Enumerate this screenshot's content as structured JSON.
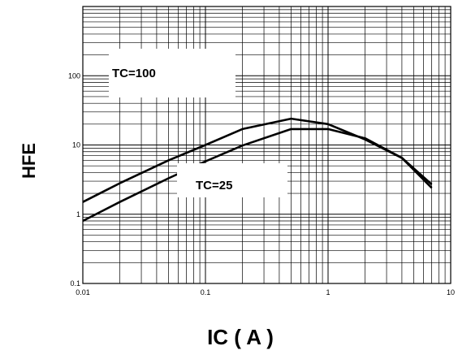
{
  "chart_data": {
    "type": "line",
    "xlabel": "IC ( A )",
    "ylabel": "HFE",
    "x_scale": "log",
    "y_scale": "log",
    "xlim": [
      0.01,
      10
    ],
    "ylim": [
      0.1,
      1000
    ],
    "grid": true,
    "x_ticks": [
      "0.01",
      "0.1",
      "1",
      "10"
    ],
    "y_ticks": [
      "0.1",
      "1",
      "10",
      "100"
    ],
    "series": [
      {
        "name": "TC=100",
        "x": [
          0.01,
          0.02,
          0.05,
          0.1,
          0.2,
          0.5,
          1,
          2,
          4,
          7
        ],
        "y": [
          1.5,
          2.8,
          6,
          10,
          17,
          24,
          20,
          12,
          6.5,
          2.7
        ]
      },
      {
        "name": "TC=25",
        "x": [
          0.01,
          0.02,
          0.05,
          0.1,
          0.2,
          0.5,
          1,
          2,
          4,
          7
        ],
        "y": [
          0.8,
          1.5,
          3.3,
          5.8,
          9.8,
          17,
          17,
          12.5,
          6.5,
          2.4
        ]
      }
    ],
    "annotations": [
      {
        "text": "TC=100",
        "series": "TC=100"
      },
      {
        "text": "TC=25",
        "series": "TC=25"
      }
    ]
  }
}
